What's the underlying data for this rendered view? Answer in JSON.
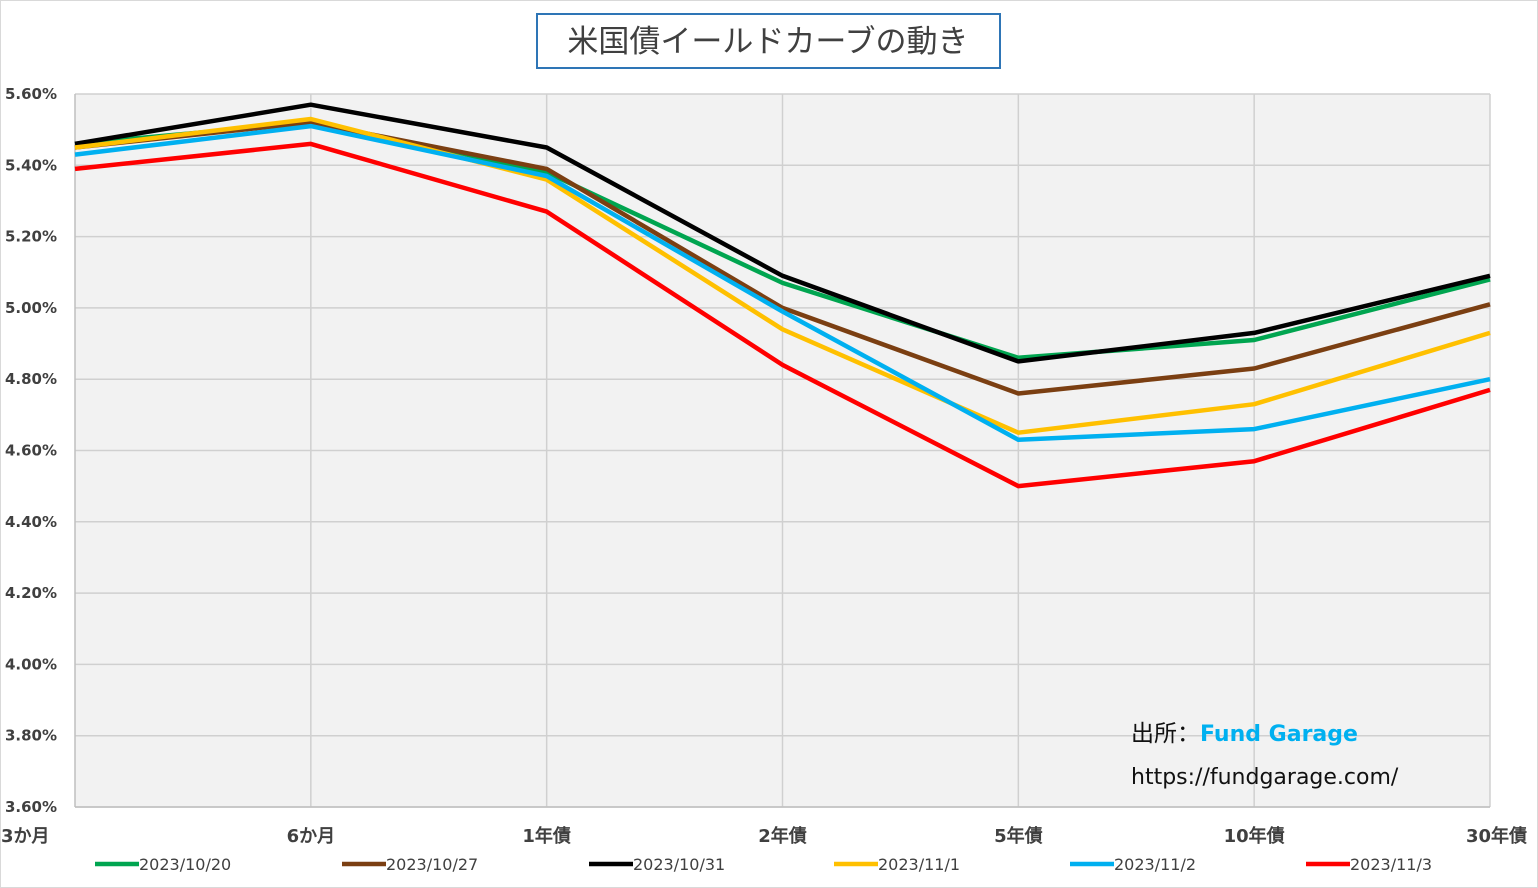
{
  "chart_data": {
    "type": "line",
    "title": "米国債イールドカーブの動き",
    "xlabel": "",
    "ylabel": "",
    "categories": [
      "3か月",
      "6か月",
      "1年債",
      "2年債",
      "5年債",
      "10年債",
      "30年債"
    ],
    "y_ticks": [
      "3.60%",
      "3.80%",
      "4.00%",
      "4.20%",
      "4.40%",
      "4.60%",
      "4.80%",
      "5.00%",
      "5.20%",
      "5.40%",
      "5.60%"
    ],
    "ylim": [
      3.6,
      5.6
    ],
    "y_unit": "%",
    "grid": true,
    "plot_background": "#f2f2f2",
    "legend_position": "bottom",
    "series": [
      {
        "name": "2023/10/20",
        "color": "#00a550",
        "values": [
          5.46,
          5.52,
          5.38,
          5.07,
          4.86,
          4.91,
          5.08
        ]
      },
      {
        "name": "2023/10/27",
        "color": "#7b3f12",
        "values": [
          5.45,
          5.52,
          5.39,
          5.0,
          4.76,
          4.83,
          5.01
        ]
      },
      {
        "name": "2023/10/31",
        "color": "#000000",
        "values": [
          5.46,
          5.57,
          5.45,
          5.09,
          4.85,
          4.93,
          5.09
        ]
      },
      {
        "name": "2023/11/1",
        "color": "#ffc000",
        "values": [
          5.45,
          5.53,
          5.36,
          4.94,
          4.65,
          4.73,
          4.93
        ]
      },
      {
        "name": "2023/11/2",
        "color": "#00b0f0",
        "values": [
          5.43,
          5.51,
          5.37,
          4.99,
          4.63,
          4.66,
          4.8
        ]
      },
      {
        "name": "2023/11/3",
        "color": "#ff0000",
        "values": [
          5.39,
          5.46,
          5.27,
          4.84,
          4.5,
          4.57,
          4.77
        ]
      }
    ]
  },
  "source": {
    "label": "出所：",
    "brand": "Fund Garage",
    "brand_color": "#00b0f0",
    "url": "https://fundgarage.com/"
  }
}
